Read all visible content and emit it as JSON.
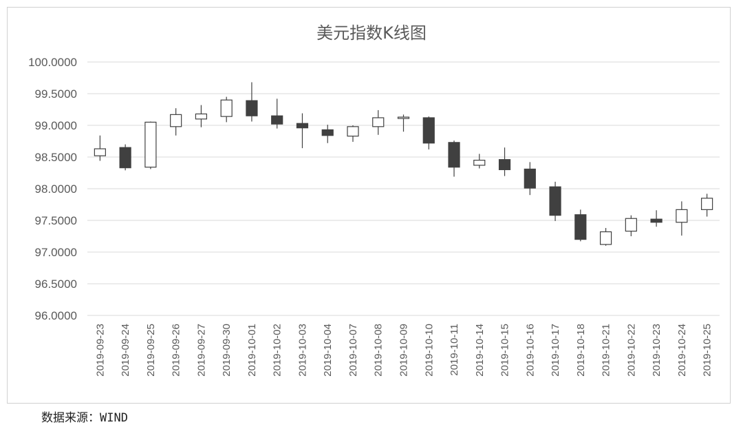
{
  "source_label": "数据来源：WIND",
  "chart_data": {
    "type": "candlestick",
    "title": "美元指数K线图",
    "ylim": [
      96.0,
      100.0
    ],
    "yticks": [
      "96.0000",
      "96.5000",
      "97.0000",
      "97.5000",
      "98.0000",
      "98.5000",
      "99.0000",
      "99.5000",
      "100.0000"
    ],
    "grid": true,
    "colors": {
      "up": "#ffffff",
      "down": "#404040",
      "grid": "#d9d9d9",
      "axis_text": "#595959"
    },
    "categories": [
      "2019-09-23",
      "2019-09-24",
      "2019-09-25",
      "2019-09-26",
      "2019-09-27",
      "2019-09-30",
      "2019-10-01",
      "2019-10-02",
      "2019-10-03",
      "2019-10-04",
      "2019-10-07",
      "2019-10-08",
      "2019-10-09",
      "2019-10-10",
      "2019-10-11",
      "2019-10-14",
      "2019-10-15",
      "2019-10-16",
      "2019-10-17",
      "2019-10-18",
      "2019-10-21",
      "2019-10-22",
      "2019-10-23",
      "2019-10-24",
      "2019-10-25"
    ],
    "open": [
      98.52,
      98.65,
      98.34,
      98.98,
      99.1,
      99.14,
      99.39,
      99.15,
      99.03,
      98.93,
      98.83,
      98.98,
      99.12,
      99.12,
      98.73,
      98.37,
      98.46,
      98.31,
      98.03,
      97.59,
      97.12,
      97.33,
      97.52,
      97.47,
      97.67
    ],
    "high": [
      98.84,
      98.7,
      99.06,
      99.27,
      99.32,
      99.45,
      99.68,
      99.42,
      99.19,
      99.01,
      99.0,
      99.24,
      99.17,
      99.14,
      98.76,
      98.55,
      98.65,
      98.42,
      98.11,
      97.67,
      97.38,
      97.58,
      97.66,
      97.8,
      97.92
    ],
    "low": [
      98.44,
      98.29,
      98.31,
      98.84,
      98.97,
      99.05,
      99.06,
      98.95,
      98.64,
      98.72,
      98.74,
      98.85,
      98.9,
      98.62,
      98.19,
      98.32,
      98.2,
      97.9,
      97.49,
      97.17,
      97.1,
      97.25,
      97.4,
      97.26,
      97.56
    ],
    "close": [
      98.63,
      98.33,
      99.05,
      99.17,
      99.18,
      99.4,
      99.15,
      99.02,
      98.96,
      98.84,
      98.98,
      99.12,
      99.13,
      98.72,
      98.34,
      98.45,
      98.3,
      98.01,
      97.58,
      97.2,
      97.32,
      97.53,
      97.47,
      97.67,
      97.85
    ]
  }
}
